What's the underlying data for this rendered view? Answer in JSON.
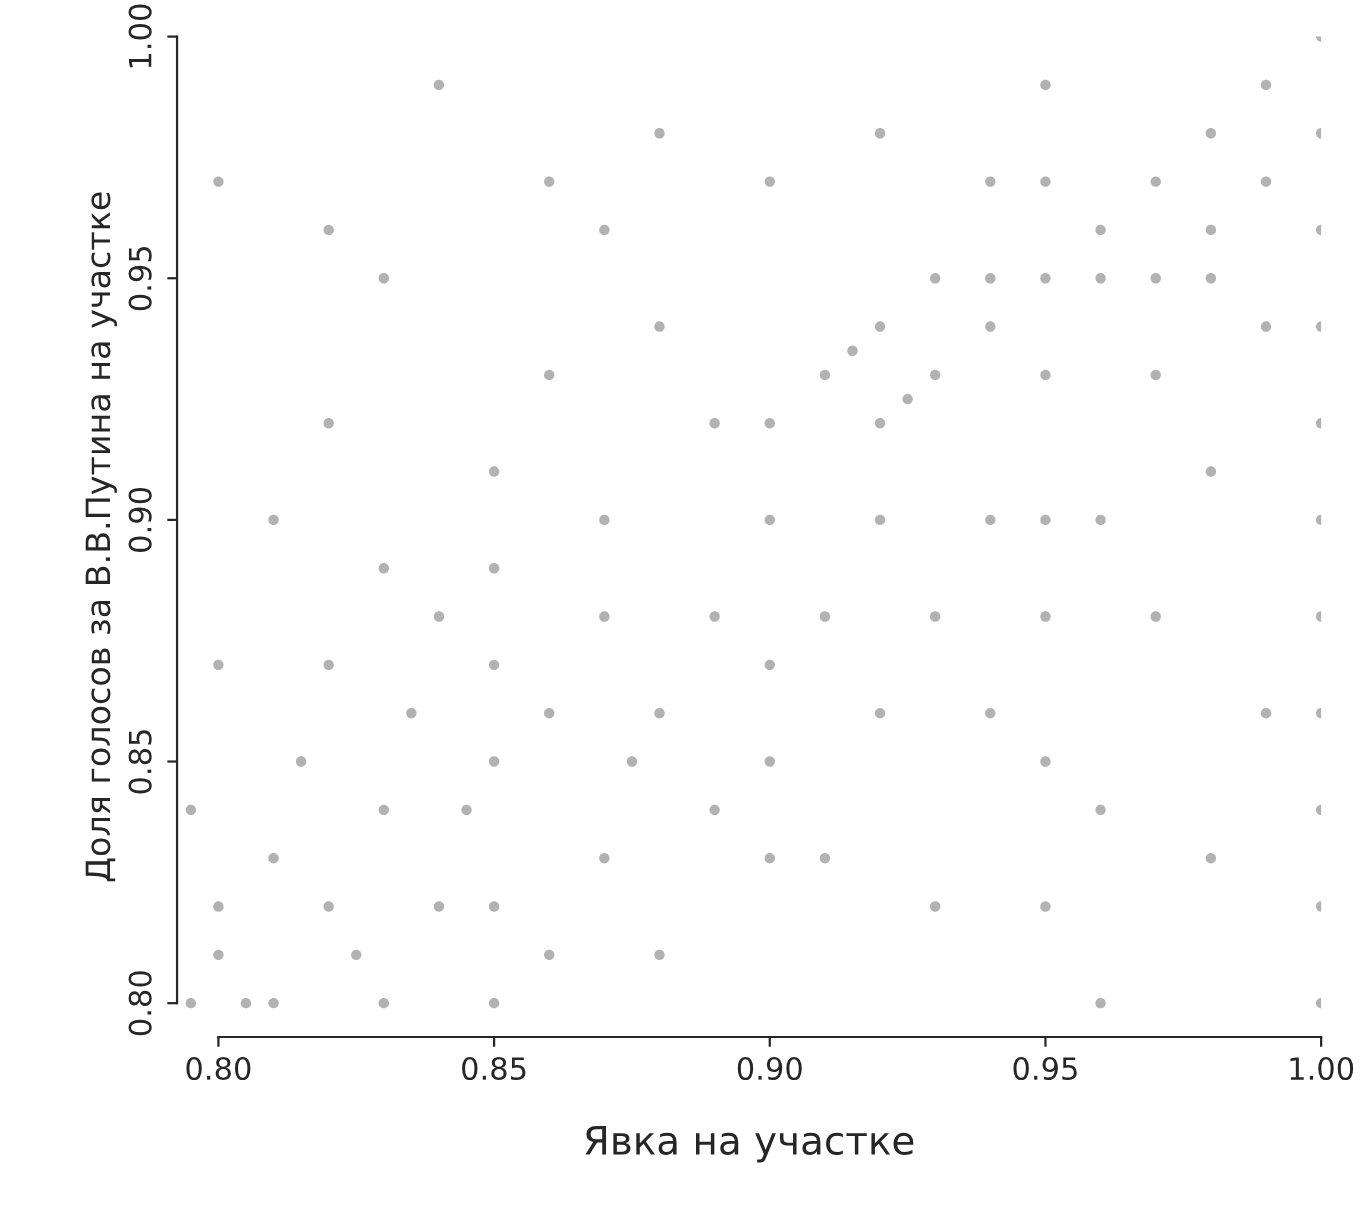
{
  "chart_data": {
    "type": "scatter",
    "xlabel": "Явка на участке",
    "ylabel": "Доля голосов за В.В.Путина на участке",
    "xlim": [
      0.7925,
      1.0
    ],
    "ylim": [
      0.793,
      1.0
    ],
    "xticks": [
      {
        "value": 0.8,
        "label": "0.80"
      },
      {
        "value": 0.85,
        "label": "0.85"
      },
      {
        "value": 0.9,
        "label": "0.90"
      },
      {
        "value": 0.95,
        "label": "0.95"
      },
      {
        "value": 1.0,
        "label": "1.00"
      }
    ],
    "yticks": [
      {
        "value": 0.8,
        "label": "0.80"
      },
      {
        "value": 0.85,
        "label": "0.85"
      },
      {
        "value": 0.9,
        "label": "0.90"
      },
      {
        "value": 0.95,
        "label": "0.95"
      },
      {
        "value": 1.0,
        "label": "1.00"
      }
    ],
    "grid": false,
    "marker": "circle",
    "series": [
      {
        "color": "#7f7f7f",
        "x": [
          1.0,
          1.0,
          1.0,
          1.0,
          1.0,
          1.0,
          1.0,
          1.0,
          1.0,
          1.0,
          1.0,
          0.95,
          0.95,
          0.95,
          0.95,
          0.95,
          0.95,
          0.95,
          0.9,
          0.9,
          0.9,
          0.9,
          0.9,
          0.85,
          0.85,
          0.85,
          0.85,
          0.85,
          0.93,
          0.94,
          0.96,
          0.97,
          0.98,
          0.92,
          0.94,
          0.96,
          0.91,
          0.92,
          0.92,
          0.93,
          0.925,
          0.915,
          0.94,
          0.96,
          0.97,
          0.98,
          0.99,
          0.99,
          0.98,
          0.8,
          0.8,
          0.805,
          0.81,
          0.81,
          0.815,
          0.82,
          0.82,
          0.825,
          0.83,
          0.83,
          0.835,
          0.84,
          0.84,
          0.845,
          0.86,
          0.86,
          0.87,
          0.87,
          0.875,
          0.88,
          0.88,
          0.89,
          0.89,
          0.795,
          0.8,
          0.81,
          0.82,
          0.83,
          0.8,
          0.84,
          0.86,
          0.87,
          0.88,
          0.85,
          0.89,
          0.9,
          0.91,
          0.92,
          0.93,
          0.94,
          0.96,
          0.97,
          0.98,
          0.99,
          0.96,
          0.93,
          0.91,
          0.97,
          0.95,
          0.92,
          0.86,
          0.82,
          0.98,
          0.99,
          0.94,
          0.88,
          0.87,
          0.83,
          0.795
        ],
        "values": [
          0.8,
          0.82,
          0.84,
          0.86,
          0.88,
          0.9,
          0.92,
          0.94,
          0.96,
          0.98,
          1.0,
          0.82,
          0.85,
          0.88,
          0.9,
          0.93,
          0.95,
          0.97,
          0.83,
          0.85,
          0.87,
          0.9,
          0.92,
          0.8,
          0.82,
          0.85,
          0.87,
          0.89,
          0.95,
          0.95,
          0.95,
          0.95,
          0.95,
          0.9,
          0.9,
          0.9,
          0.93,
          0.92,
          0.94,
          0.93,
          0.925,
          0.935,
          0.94,
          0.96,
          0.97,
          0.98,
          0.99,
          0.97,
          0.96,
          0.81,
          0.82,
          0.8,
          0.83,
          0.8,
          0.85,
          0.82,
          0.87,
          0.81,
          0.84,
          0.8,
          0.86,
          0.82,
          0.88,
          0.84,
          0.81,
          0.86,
          0.83,
          0.88,
          0.85,
          0.86,
          0.81,
          0.84,
          0.88,
          0.84,
          0.87,
          0.9,
          0.92,
          0.95,
          0.97,
          0.99,
          0.93,
          0.96,
          0.98,
          0.91,
          0.92,
          0.97,
          0.88,
          0.86,
          0.82,
          0.86,
          0.84,
          0.88,
          0.91,
          0.86,
          0.8,
          0.88,
          0.83,
          0.93,
          0.99,
          0.98,
          0.97,
          0.96,
          0.83,
          0.94,
          0.97,
          0.94,
          0.9,
          0.89,
          0.8
        ]
      }
    ]
  }
}
